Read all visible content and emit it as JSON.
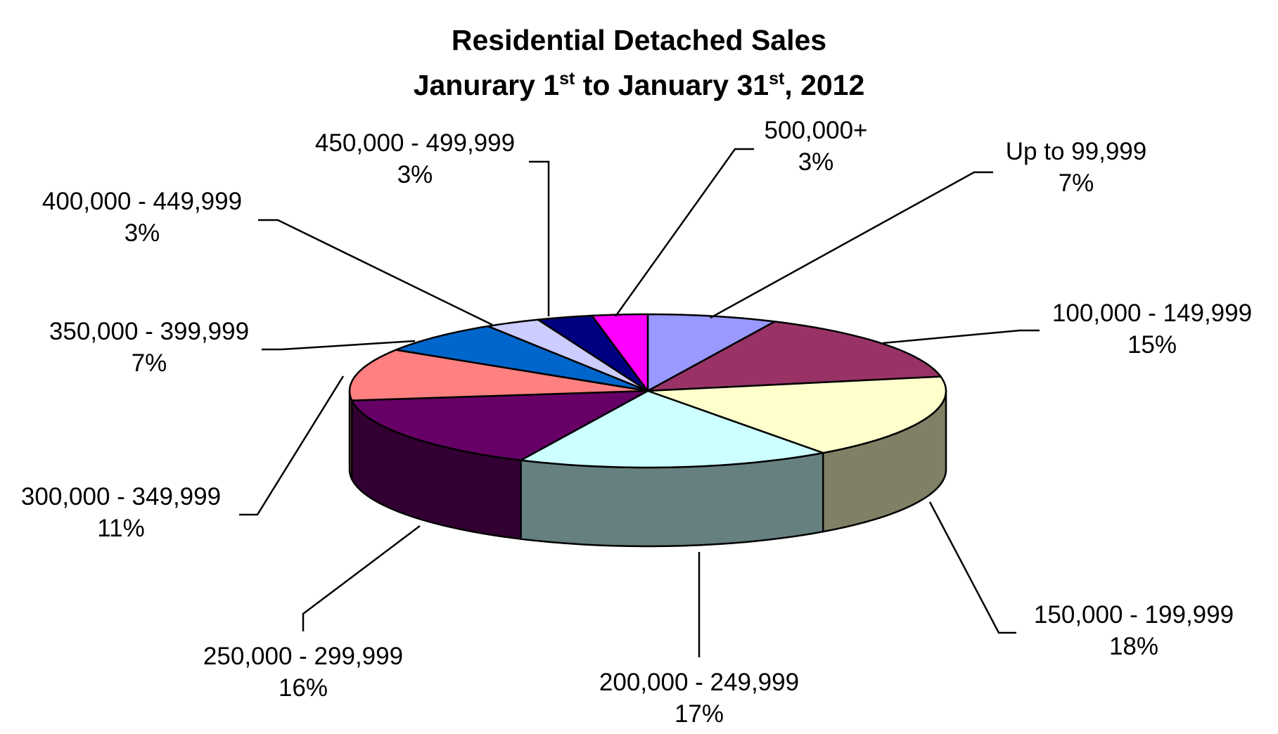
{
  "chart_data": {
    "type": "pie",
    "style": "3d",
    "title_line1": "Residential Detached Sales",
    "title_line2": {
      "month1": "Janurary 1",
      "sup1": "st",
      "middle": " to January 31",
      "sup2": "st",
      "end": ", 2012"
    },
    "slices": [
      {
        "label": "Up to 99,999",
        "value": 7,
        "value_label": "7%",
        "color": "#9999ff",
        "side_color": "#5c5c99"
      },
      {
        "label": "100,000 - 149,999",
        "value": 15,
        "value_label": "15%",
        "color": "#993366",
        "side_color": "#5c1f3d"
      },
      {
        "label": "150,000 - 199,999",
        "value": 18,
        "value_label": "18%",
        "color": "#ffffcc",
        "side_color": "#808066"
      },
      {
        "label": "200,000 - 249,999",
        "value": 17,
        "value_label": "17%",
        "color": "#ccffff",
        "side_color": "#668080"
      },
      {
        "label": "250,000 - 299,999",
        "value": 16,
        "value_label": "16%",
        "color": "#660066",
        "side_color": "#330033"
      },
      {
        "label": "300,000 - 349,999",
        "value": 11,
        "value_label": "11%",
        "color": "#ff8080",
        "side_color": "#804040"
      },
      {
        "label": "350,000 - 399,999",
        "value": 7,
        "value_label": "7%",
        "color": "#0066cc",
        "side_color": "#003366"
      },
      {
        "label": "400,000 - 449,999",
        "value": 3,
        "value_label": "3%",
        "color": "#ccccff",
        "side_color": "#666680"
      },
      {
        "label": "450,000 - 499,999",
        "value": 3,
        "value_label": "3%",
        "color": "#000080",
        "side_color": "#000040"
      },
      {
        "label": "500,000+",
        "value": 3,
        "value_label": "3%",
        "color": "#ff00ff",
        "side_color": "#800080"
      }
    ]
  }
}
